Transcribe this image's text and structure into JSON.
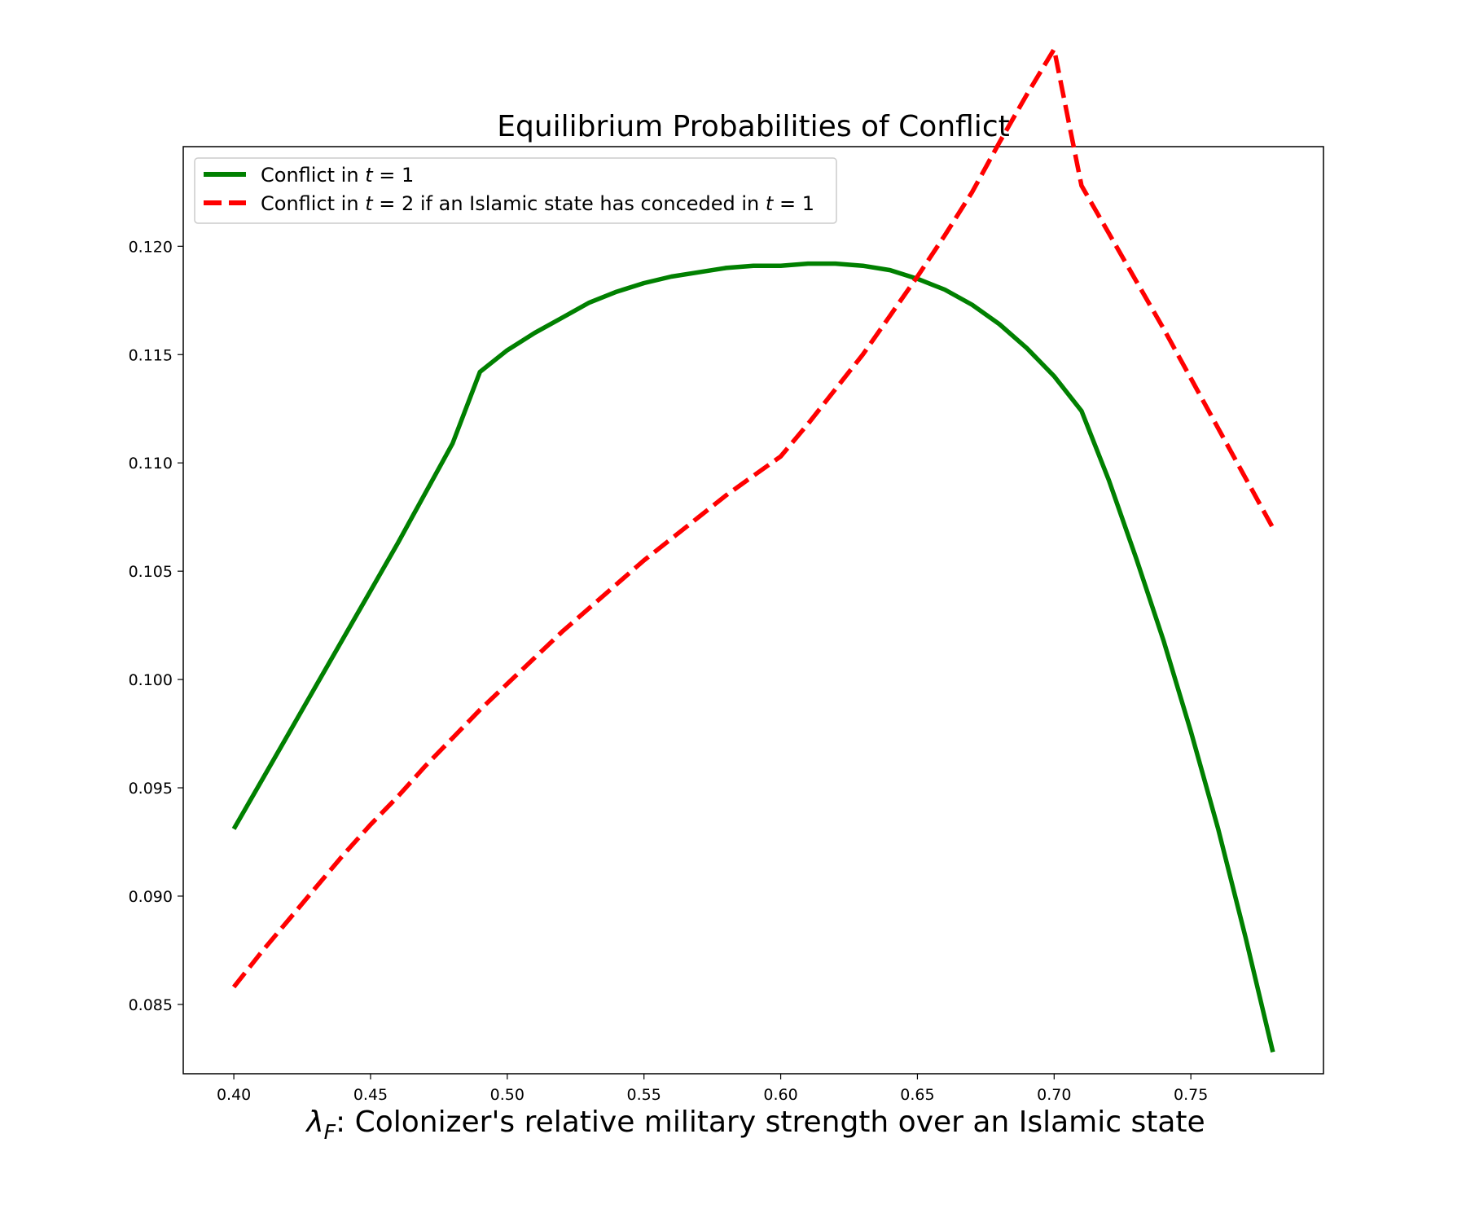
{
  "chart_data": {
    "type": "line",
    "title": "Equilibrium Probabilities of Conflict",
    "xlabel_symbol": "λ",
    "xlabel_subscript": "F",
    "xlabel_text": ": Colonizer's relative military strength over an Islamic state",
    "ylabel": "",
    "xlim": [
      0.3815,
      0.7985
    ],
    "ylim": [
      0.0818,
      0.1246
    ],
    "xticks": [
      0.4,
      0.45,
      0.5,
      0.55,
      0.6,
      0.65,
      0.7,
      0.75
    ],
    "yticks": [
      0.085,
      0.09,
      0.095,
      0.1,
      0.105,
      0.11,
      0.115,
      0.12
    ],
    "legend_position": "upper-left",
    "series": [
      {
        "name": "Conflict in t = 1",
        "legend_parts": [
          "Conflict in ",
          "t",
          " = 1"
        ],
        "color": "#008000",
        "style": "solid",
        "x": [
          0.4,
          0.41,
          0.42,
          0.43,
          0.44,
          0.45,
          0.46,
          0.47,
          0.48,
          0.49,
          0.5,
          0.51,
          0.52,
          0.53,
          0.54,
          0.55,
          0.56,
          0.57,
          0.58,
          0.59,
          0.6,
          0.61,
          0.62,
          0.63,
          0.64,
          0.65,
          0.66,
          0.67,
          0.68,
          0.69,
          0.7,
          0.71,
          0.72,
          0.73,
          0.74,
          0.75,
          0.76,
          0.77,
          0.78
        ],
        "values": [
          0.0931,
          0.0953,
          0.0975,
          0.0997,
          0.1019,
          0.1041,
          0.1063,
          0.1086,
          0.1109,
          0.1142,
          0.1152,
          0.116,
          0.1167,
          0.1174,
          0.1179,
          0.1183,
          0.1186,
          0.1188,
          0.119,
          0.1191,
          0.1191,
          0.1192,
          0.1192,
          0.1191,
          0.1189,
          0.1185,
          0.118,
          0.1173,
          0.1164,
          0.1153,
          0.114,
          0.1124,
          0.1092,
          0.1056,
          0.1018,
          0.0976,
          0.0931,
          0.0881,
          0.0828
        ]
      },
      {
        "name": "Conflict in t = 2 if an Islamic state has conceded in t = 1",
        "legend_parts": [
          "Conflict in ",
          "t",
          " = 2 if an Islamic state has conceded in ",
          "t",
          " = 1"
        ],
        "color": "#ff0000",
        "style": "dashed",
        "x": [
          0.4,
          0.41,
          0.42,
          0.43,
          0.44,
          0.45,
          0.46,
          0.47,
          0.48,
          0.49,
          0.5,
          0.51,
          0.52,
          0.53,
          0.54,
          0.55,
          0.56,
          0.57,
          0.58,
          0.59,
          0.6,
          0.61,
          0.62,
          0.63,
          0.64,
          0.65,
          0.66,
          0.67,
          0.68,
          0.69,
          0.7,
          0.71,
          0.72,
          0.73,
          0.74,
          0.75,
          0.76,
          0.77,
          0.78
        ],
        "values": [
          0.0858,
          0.0874,
          0.0889,
          0.0904,
          0.0919,
          0.0933,
          0.0946,
          0.096,
          0.0973,
          0.0986,
          0.0998,
          0.101,
          0.1022,
          0.1033,
          0.1044,
          0.1055,
          0.1065,
          0.1075,
          0.1085,
          0.1094,
          0.1103,
          0.1118,
          0.1134,
          0.115,
          0.1168,
          0.1186,
          0.1205,
          0.1225,
          0.1248,
          0.127,
          0.1291,
          0.1228,
          0.1206,
          0.1184,
          0.1162,
          0.1139,
          0.1116,
          0.1093,
          0.107
        ]
      }
    ]
  }
}
